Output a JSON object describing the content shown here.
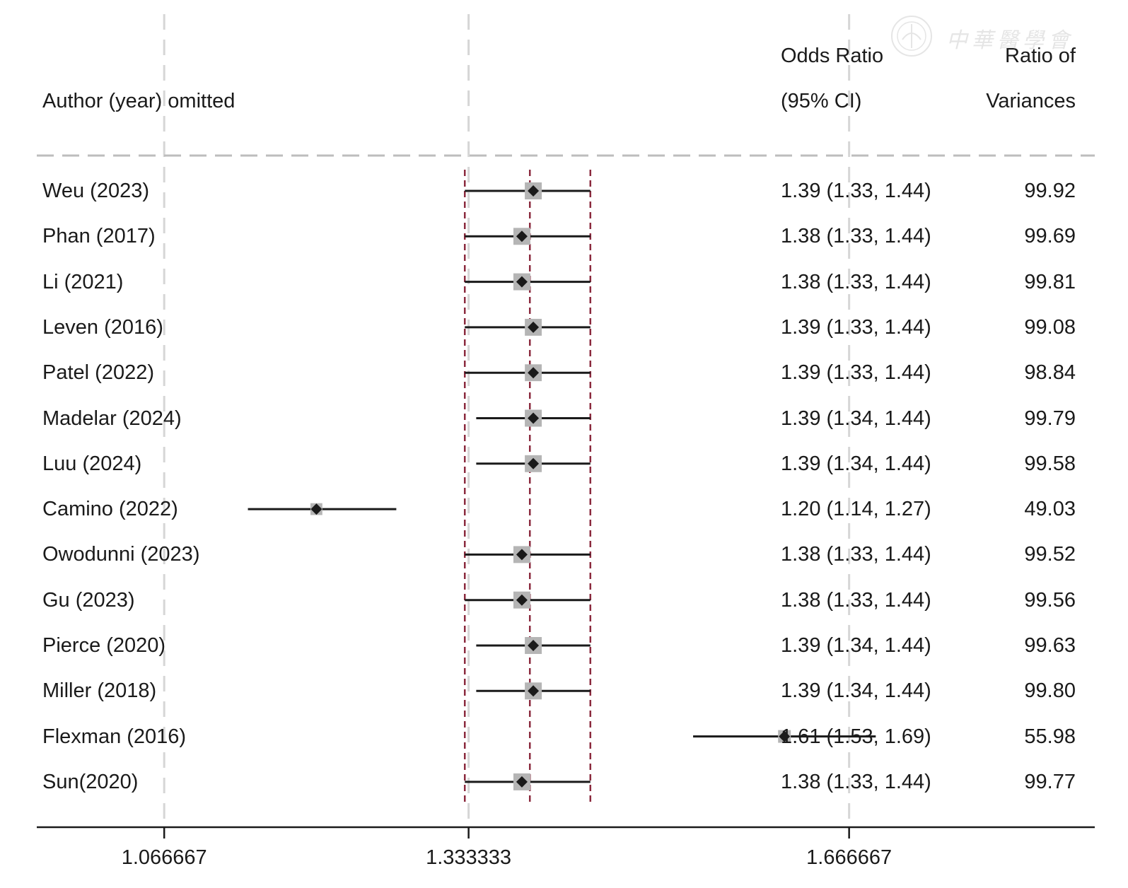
{
  "header": {
    "study_col": "Author (year) omitted",
    "or_col_line1": "Odds Ratio",
    "or_col_line2": "(95% CI)",
    "w_col_line1": "Ratio of",
    "w_col_line2": "Variances"
  },
  "watermark": {
    "text": "中華醫學會"
  },
  "colors": {
    "marker": "#1a1a1a",
    "box": "#b5b5b5",
    "ci_line": "#1a1a1a",
    "pooled_ref": "#8b2a3e",
    "grid": "#d6d6d6"
  },
  "chart_data": {
    "type": "forest",
    "xlim": [
      0.96,
      1.88
    ],
    "pooled": {
      "estimate": 1.387,
      "ci": [
        1.33,
        1.44
      ]
    },
    "xticks": [
      {
        "value": 1.066667,
        "label": "1.066667"
      },
      {
        "value": 1.333333,
        "label": "1.333333"
      },
      {
        "value": 1.666667,
        "label": "1.666667"
      }
    ],
    "rows": [
      {
        "label": "Weu (2023)",
        "or": 1.39,
        "lo": 1.33,
        "hi": 1.44,
        "or_text": "1.39 (1.33, 1.44)",
        "ratio": "99.92"
      },
      {
        "label": "Phan (2017)",
        "or": 1.38,
        "lo": 1.33,
        "hi": 1.44,
        "or_text": "1.38 (1.33, 1.44)",
        "ratio": "99.69"
      },
      {
        "label": "Li (2021)",
        "or": 1.38,
        "lo": 1.33,
        "hi": 1.44,
        "or_text": "1.38 (1.33, 1.44)",
        "ratio": "99.81"
      },
      {
        "label": "Leven (2016)",
        "or": 1.39,
        "lo": 1.33,
        "hi": 1.44,
        "or_text": "1.39 (1.33, 1.44)",
        "ratio": "99.08"
      },
      {
        "label": "Patel (2022)",
        "or": 1.39,
        "lo": 1.33,
        "hi": 1.44,
        "or_text": "1.39 (1.33, 1.44)",
        "ratio": "98.84"
      },
      {
        "label": "Madelar (2024)",
        "or": 1.39,
        "lo": 1.34,
        "hi": 1.44,
        "or_text": "1.39 (1.34, 1.44)",
        "ratio": "99.79"
      },
      {
        "label": "Luu (2024)",
        "or": 1.39,
        "lo": 1.34,
        "hi": 1.44,
        "or_text": "1.39 (1.34, 1.44)",
        "ratio": "99.58"
      },
      {
        "label": "Camino (2022)",
        "or": 1.2,
        "lo": 1.14,
        "hi": 1.27,
        "or_text": "1.20 (1.14, 1.27)",
        "ratio": "49.03"
      },
      {
        "label": "Owodunni (2023)",
        "or": 1.38,
        "lo": 1.33,
        "hi": 1.44,
        "or_text": "1.38 (1.33, 1.44)",
        "ratio": "99.52"
      },
      {
        "label": "Gu (2023)",
        "or": 1.38,
        "lo": 1.33,
        "hi": 1.44,
        "or_text": "1.38 (1.33, 1.44)",
        "ratio": "99.56"
      },
      {
        "label": "Pierce (2020)",
        "or": 1.39,
        "lo": 1.34,
        "hi": 1.44,
        "or_text": "1.39 (1.34, 1.44)",
        "ratio": "99.63"
      },
      {
        "label": "Miller (2018)",
        "or": 1.39,
        "lo": 1.34,
        "hi": 1.44,
        "or_text": "1.39 (1.34, 1.44)",
        "ratio": "99.80"
      },
      {
        "label": "Flexman (2016)",
        "or": 1.61,
        "lo": 1.53,
        "hi": 1.69,
        "or_text": "1.61 (1.53, 1.69)",
        "ratio": "55.98"
      },
      {
        "label": "Sun(2020)",
        "or": 1.38,
        "lo": 1.33,
        "hi": 1.44,
        "or_text": "1.38 (1.33, 1.44)",
        "ratio": "99.77"
      }
    ]
  }
}
